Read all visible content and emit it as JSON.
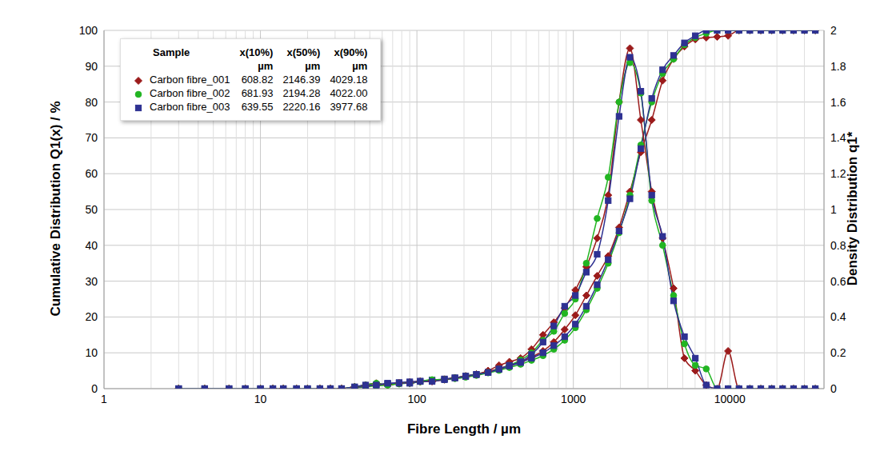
{
  "chart_data": {
    "type": "line",
    "xlabel": "Fibre Length / µm",
    "ylabel": "Cumulative Distribution Q1(x) / %",
    "y2label": "Density Distribution q1*",
    "log": "x",
    "grid": true,
    "legend": "upper left",
    "legend_table": {
      "header": [
        "Sample",
        "x(10%)",
        "x(50%)",
        "x(90%)"
      ],
      "unit": "µm"
    },
    "xlim": [
      1,
      40000
    ],
    "xticks": [
      1,
      10,
      100,
      1000,
      10000
    ],
    "ylim": [
      0,
      100
    ],
    "yticks": [
      0,
      10,
      20,
      30,
      40,
      50,
      60,
      70,
      80,
      90,
      100
    ],
    "y2lim": [
      0,
      2
    ],
    "y2ticks": [
      0,
      0.2,
      0.4,
      0.6,
      0.8,
      1,
      1.2,
      1.4,
      1.6,
      1.8,
      2
    ],
    "x": [
      3,
      4.4,
      6.3,
      8,
      10,
      12,
      14,
      17,
      20,
      24,
      28,
      33,
      40,
      47,
      55,
      65,
      77,
      90,
      105,
      125,
      150,
      175,
      205,
      240,
      285,
      335,
      390,
      460,
      540,
      640,
      750,
      880,
      1030,
      1210,
      1420,
      1670,
      1960,
      2300,
      2700,
      3170,
      3720,
      4370,
      5130,
      6020,
      7070,
      8300,
      9750,
      11450,
      13440,
      15780,
      18530,
      21760,
      25550,
      30000,
      35200
    ],
    "series": [
      {
        "name": "Carbon fibre_001",
        "color": "#9b1b1b",
        "marker": "diamond",
        "x10": 608.82,
        "x50": 2146.39,
        "x90": 4029.18,
        "values": [
          0,
          0,
          0,
          0,
          0,
          0,
          0,
          0,
          0,
          0,
          0,
          0,
          0.3,
          0.6,
          1.0,
          1.2,
          1.5,
          1.8,
          2.0,
          2.3,
          2.6,
          3.0,
          3.5,
          4.0,
          4.8,
          5.6,
          6.5,
          7.5,
          8.8,
          10.5,
          13,
          16.5,
          20.5,
          26,
          31.5,
          37,
          45,
          55,
          66,
          75,
          86,
          92,
          95.5,
          97.5,
          98,
          98.2,
          98.5,
          100,
          100,
          100,
          100,
          100,
          100,
          100,
          100
        ],
        "density": [
          0,
          0,
          0,
          0,
          0,
          0,
          0,
          0,
          0,
          0,
          0,
          0,
          0.01,
          0.02,
          0.03,
          0.02,
          0.03,
          0.03,
          0.04,
          0.04,
          0.05,
          0.06,
          0.07,
          0.08,
          0.1,
          0.13,
          0.15,
          0.17,
          0.22,
          0.3,
          0.37,
          0.45,
          0.55,
          0.68,
          0.84,
          1.08,
          1.6,
          1.9,
          1.5,
          1.1,
          0.84,
          0.56,
          0.17,
          0.1,
          0.02,
          0,
          0.21,
          0,
          0,
          0,
          0,
          0,
          0,
          0,
          0
        ]
      },
      {
        "name": "Carbon fibre_002",
        "color": "#22b522",
        "marker": "circle",
        "x10": 681.93,
        "x50": 2194.28,
        "x90": 4022.0,
        "values": [
          0,
          0,
          0,
          0,
          0,
          0,
          0,
          0,
          0,
          0,
          0,
          0,
          0.2,
          0.5,
          0.8,
          1.0,
          1.3,
          1.6,
          1.9,
          2.2,
          2.5,
          2.8,
          3.2,
          3.7,
          4.4,
          5.1,
          5.9,
          6.8,
          7.9,
          9.2,
          11,
          13.5,
          17,
          22,
          28,
          35,
          43.5,
          54,
          68,
          80,
          88,
          92,
          96,
          98,
          99.2,
          100,
          100,
          100,
          100,
          100,
          100,
          100,
          100,
          100,
          100
        ],
        "density": [
          0,
          0,
          0,
          0,
          0,
          0,
          0,
          0,
          0,
          0,
          0,
          0,
          0.01,
          0.02,
          0.03,
          0.02,
          0.03,
          0.03,
          0.04,
          0.05,
          0.05,
          0.06,
          0.07,
          0.08,
          0.09,
          0.11,
          0.13,
          0.16,
          0.2,
          0.27,
          0.32,
          0.42,
          0.5,
          0.7,
          0.95,
          1.18,
          1.6,
          1.82,
          1.65,
          1.05,
          0.8,
          0.52,
          0.25,
          0.13,
          0.11,
          0,
          0,
          0,
          0,
          0,
          0,
          0,
          0,
          0,
          0
        ]
      },
      {
        "name": "Carbon fibre_003",
        "color": "#2e3192",
        "marker": "square",
        "x10": 639.55,
        "x50": 2220.16,
        "x90": 3977.68,
        "values": [
          0,
          0,
          0,
          0,
          0,
          0,
          0,
          0,
          0,
          0,
          0,
          0,
          0.3,
          0.7,
          1.1,
          1.4,
          1.7,
          1.9,
          2.1,
          2.4,
          2.7,
          3.0,
          3.4,
          3.9,
          4.6,
          5.4,
          6.3,
          7.3,
          8.5,
          10,
          12,
          14.5,
          18,
          23,
          29,
          36,
          44,
          53,
          67,
          81,
          89,
          93,
          96.5,
          98.5,
          100,
          100,
          100,
          100,
          100,
          100,
          100,
          100,
          100,
          100,
          100
        ],
        "density": [
          0,
          0,
          0,
          0,
          0,
          0,
          0,
          0,
          0,
          0,
          0,
          0,
          0.01,
          0.02,
          0.02,
          0.03,
          0.03,
          0.03,
          0.04,
          0.04,
          0.05,
          0.06,
          0.07,
          0.08,
          0.09,
          0.11,
          0.13,
          0.15,
          0.19,
          0.26,
          0.35,
          0.46,
          0.52,
          0.65,
          0.75,
          1.05,
          1.52,
          1.85,
          1.66,
          1.08,
          0.85,
          0.49,
          0.29,
          0.17,
          0.02,
          0,
          0,
          0,
          0,
          0,
          0,
          0,
          0,
          0,
          0
        ]
      }
    ]
  }
}
